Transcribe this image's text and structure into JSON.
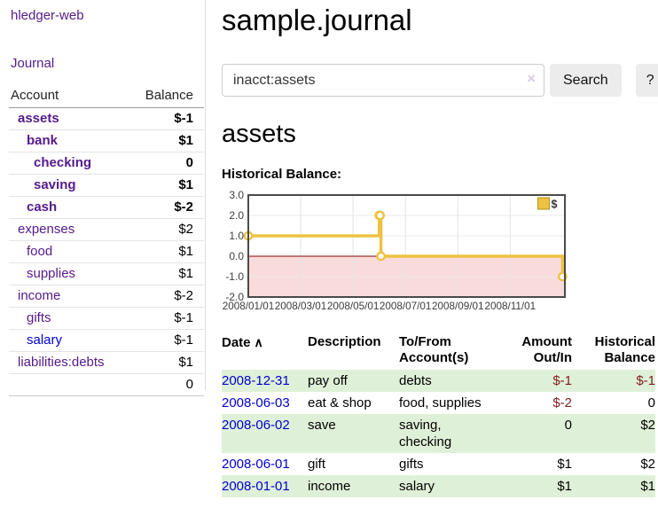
{
  "colors": {
    "purple_link": "#551a8b",
    "blue_link": "#0000cc",
    "negative_dark": "#8b1a1a",
    "negative_muted": "#b36060",
    "table_negative": "#7f1d1d",
    "row_highlight_green": "#dff0d8",
    "chart_line_gold": "#edc240",
    "chart_zero_line": "#8b0000",
    "chart_negative_fill": "#fadbdb",
    "chart_border": "#4a4a4a",
    "button_bg": "#ececec"
  },
  "sidebar": {
    "brand": "hledger-web",
    "journal_link": "Journal",
    "accounts": {
      "col_account": "Account",
      "col_balance": "Balance",
      "rows": [
        {
          "name": "assets",
          "balance": "$-1",
          "depth": 1,
          "bold": true
        },
        {
          "name": "bank",
          "balance": "$1",
          "depth": 2,
          "bold": true
        },
        {
          "name": "checking",
          "balance": "0",
          "depth": 3,
          "bold": true
        },
        {
          "name": "saving",
          "balance": "$1",
          "depth": 3,
          "bold": true
        },
        {
          "name": "cash",
          "balance": "$-2",
          "depth": 2,
          "bold": true
        },
        {
          "name": "expenses",
          "balance": "$2",
          "depth": 1,
          "bold": false
        },
        {
          "name": "food",
          "balance": "$1",
          "depth": 2,
          "bold": false
        },
        {
          "name": "supplies",
          "balance": "$1",
          "depth": 2,
          "bold": false
        },
        {
          "name": "income",
          "balance": "$-2",
          "depth": 1,
          "bold": false
        },
        {
          "name": "gifts",
          "balance": "$-1",
          "depth": 2,
          "bold": false
        },
        {
          "name": "salary",
          "balance": "$-1",
          "depth": 2,
          "bold": false,
          "link_style": "unvisited"
        },
        {
          "name": "liabilities:debts",
          "balance": "$1",
          "depth": 1,
          "bold": false
        }
      ],
      "total": "0"
    }
  },
  "main": {
    "title": "sample.journal",
    "search": {
      "value": "inacct:assets",
      "clear_icon": "×",
      "search_button": "Search",
      "help_button": "?"
    },
    "account_heading": "assets",
    "chart_heading": "Historical Balance:"
  },
  "chart_data": {
    "type": "line",
    "step": true,
    "title": "Historical Balance:",
    "series": [
      {
        "name": "$",
        "color": "#edc240",
        "points": [
          [
            "2008-01-01",
            1
          ],
          [
            "2008-06-01",
            2
          ],
          [
            "2008-06-02",
            2
          ],
          [
            "2008-06-03",
            0
          ],
          [
            "2008-12-31",
            -1
          ]
        ]
      }
    ],
    "ylim": [
      -2,
      3
    ],
    "yticks": [
      "3.0",
      "2.0",
      "1.0",
      "0.0",
      "-1.0",
      "-2.0"
    ],
    "ytick_values": [
      3,
      2,
      1,
      0,
      -1,
      -2
    ],
    "xticks": [
      "2008/01/01",
      "2008/03/01",
      "2008/05/01",
      "2008/07/01",
      "2008/09/01",
      "2008/11/01"
    ],
    "legend": {
      "label": "$",
      "position": "top-right"
    },
    "grid": true,
    "negative_region_shaded": true,
    "zero_line": true
  },
  "register": {
    "headers": {
      "date": "Date",
      "sort_icon": "∧",
      "description": "Description",
      "accounts": "To/From\nAccount(s)",
      "amount": "Amount\nOut/In",
      "balance": "Historical\nBalance"
    },
    "rows": [
      {
        "date": "2008-12-31",
        "description": "pay off",
        "accounts": "debts",
        "amount": "$-1",
        "balance": "$-1",
        "highlighted": true
      },
      {
        "date": "2008-06-03",
        "description": "eat & shop",
        "accounts": "food, supplies",
        "amount": "$-2",
        "balance": "0",
        "highlighted": false
      },
      {
        "date": "2008-06-02",
        "description": "save",
        "accounts": "saving,\nchecking",
        "amount": "0",
        "balance": "$2",
        "highlighted": true
      },
      {
        "date": "2008-06-01",
        "description": "gift",
        "accounts": "gifts",
        "amount": "$1",
        "balance": "$2",
        "highlighted": false
      },
      {
        "date": "2008-01-01",
        "description": "income",
        "accounts": "salary",
        "amount": "$1",
        "balance": "$1",
        "highlighted": true
      }
    ]
  }
}
